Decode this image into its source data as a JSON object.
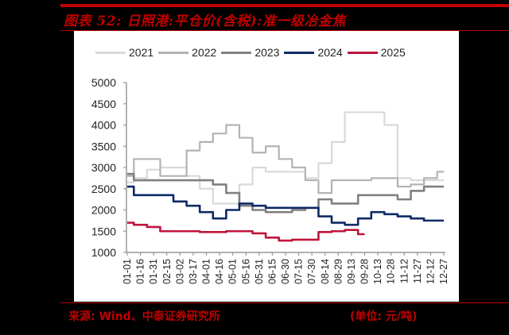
{
  "figure": {
    "title": "图表 52:  日照港:平仓价(含税):准一级冶金焦",
    "source": "来源:  Wind、中泰证券研究所",
    "unit": "(单位: 元/吨)"
  },
  "colors": {
    "accent": "#c00000",
    "2021": "#d9d9d9",
    "2022": "#b3b3b3",
    "2023": "#808080",
    "2024": "#0d2a66",
    "2025": "#c0143c"
  },
  "chart_data": {
    "type": "line",
    "title": "日照港:平仓价(含税):准一级冶金焦",
    "xlabel": "",
    "ylabel": "元/吨",
    "ylim": [
      1000,
      5000
    ],
    "yticks": [
      1000,
      1500,
      2000,
      2500,
      3000,
      3500,
      4000,
      4500,
      5000
    ],
    "grid": false,
    "legend_position": "top",
    "categories": [
      "01-01",
      "01-16",
      "01-31",
      "02-15",
      "03-02",
      "03-17",
      "04-01",
      "04-16",
      "05-01",
      "05-16",
      "05-31",
      "06-15",
      "06-30",
      "07-15",
      "07-30",
      "08-14",
      "08-29",
      "09-13",
      "09-28",
      "10-13",
      "10-28",
      "11-12",
      "11-27",
      "12-12",
      "12-27"
    ],
    "series": [
      {
        "name": "2021",
        "values": [
          2650,
          2750,
          2950,
          3000,
          3000,
          2800,
          2500,
          2150,
          2150,
          2600,
          3000,
          2900,
          2900,
          2900,
          2750,
          3100,
          3600,
          4300,
          4300,
          4300,
          4000,
          2750,
          2700,
          2700,
          2700
        ]
      },
      {
        "name": "2022",
        "values": [
          2800,
          3200,
          3200,
          2800,
          2800,
          3400,
          3600,
          3800,
          4000,
          3700,
          3350,
          3500,
          3200,
          3000,
          2700,
          2400,
          2700,
          2700,
          2700,
          2750,
          2750,
          2550,
          2600,
          2750,
          2900
        ]
      },
      {
        "name": "2023",
        "values": [
          2850,
          2700,
          2700,
          2700,
          2700,
          2700,
          2700,
          2600,
          2400,
          2100,
          2000,
          1950,
          1950,
          2000,
          2050,
          2250,
          2150,
          2150,
          2350,
          2350,
          2350,
          2250,
          2450,
          2550,
          2550
        ]
      },
      {
        "name": "2024",
        "values": [
          2550,
          2350,
          2350,
          2350,
          2200,
          2100,
          1950,
          1800,
          2000,
          2150,
          2100,
          2050,
          2050,
          2050,
          2050,
          1850,
          1700,
          1650,
          1800,
          1950,
          1900,
          1850,
          1800,
          1750,
          1750
        ]
      },
      {
        "name": "2025",
        "values": [
          1700,
          1650,
          1600,
          1500,
          1500,
          1500,
          1480,
          1480,
          1500,
          1500,
          1450,
          1350,
          1280,
          1300,
          1300,
          1480,
          1500,
          1530,
          1430,
          null,
          null,
          null,
          null,
          null,
          null
        ]
      }
    ]
  }
}
